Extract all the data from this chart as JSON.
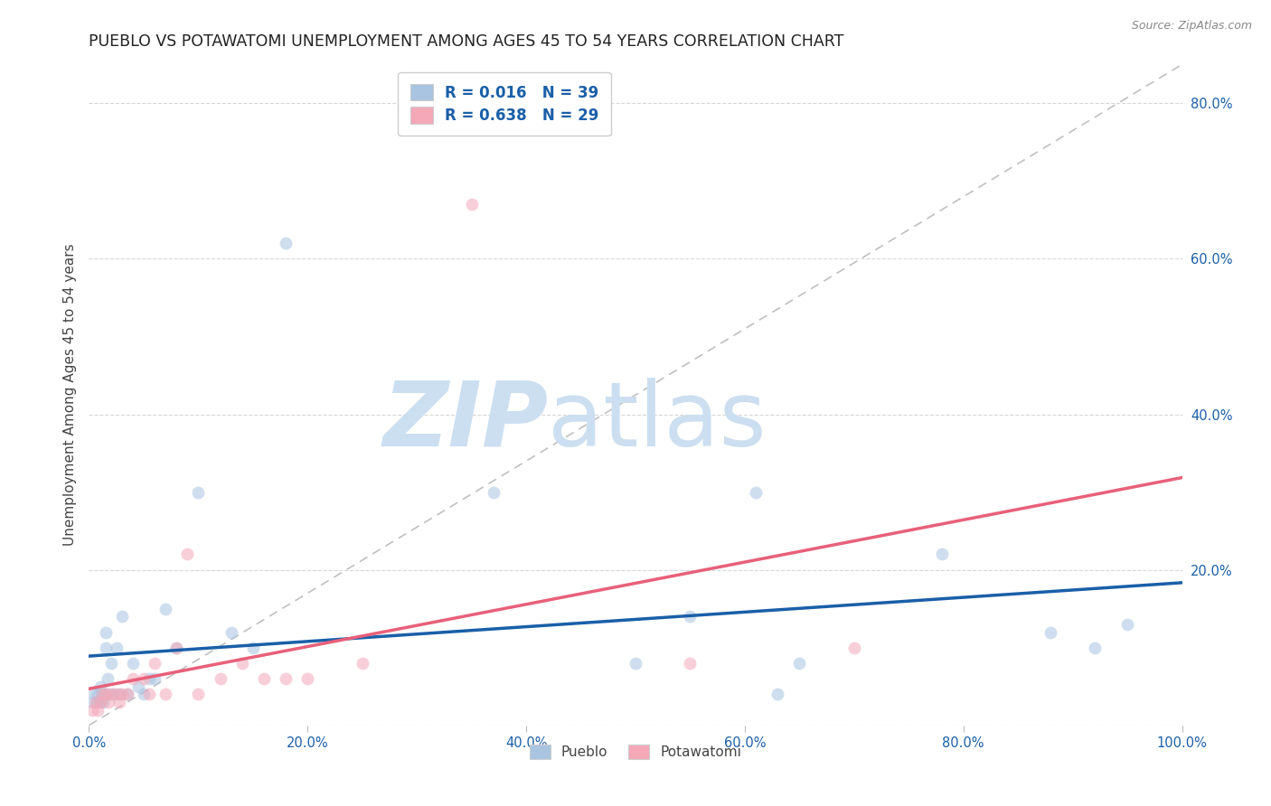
{
  "title": "PUEBLO VS POTAWATOMI UNEMPLOYMENT AMONG AGES 45 TO 54 YEARS CORRELATION CHART",
  "source": "Source: ZipAtlas.com",
  "ylabel": "Unemployment Among Ages 45 to 54 years",
  "xlim": [
    0.0,
    1.0
  ],
  "ylim": [
    0.0,
    0.85
  ],
  "xticks": [
    0.0,
    0.2,
    0.4,
    0.6,
    0.8,
    1.0
  ],
  "xtick_labels": [
    "0.0%",
    "20.0%",
    "40.0%",
    "60.0%",
    "80.0%",
    "100.0%"
  ],
  "yticks": [
    0.0,
    0.2,
    0.4,
    0.6,
    0.8
  ],
  "ytick_labels": [
    "",
    "20.0%",
    "40.0%",
    "60.0%",
    "80.0%"
  ],
  "pueblo_color": "#a8c4e0",
  "potawatomi_color": "#f4a8b8",
  "pueblo_line_color": "#1a5fa8",
  "potawatomi_line_color": "#e8607a",
  "diagonal_color": "#c0c0c0",
  "pueblo_R": 0.016,
  "pueblo_N": 39,
  "potawatomi_R": 0.638,
  "potawatomi_N": 29,
  "legend_R_color": "#1a5fa8",
  "watermark_zip": "ZIP",
  "watermark_atlas": "atlas",
  "watermark_color_zip": "#ccdff0",
  "watermark_color_atlas": "#ccdff0",
  "pueblo_x": [
    0.003,
    0.005,
    0.007,
    0.008,
    0.01,
    0.01,
    0.012,
    0.013,
    0.015,
    0.015,
    0.017,
    0.018,
    0.02,
    0.022,
    0.025,
    0.028,
    0.03,
    0.035,
    0.04,
    0.045,
    0.05,
    0.055,
    0.06,
    0.07,
    0.08,
    0.1,
    0.13,
    0.15,
    0.18,
    0.37,
    0.5,
    0.55,
    0.61,
    0.63,
    0.65,
    0.78,
    0.88,
    0.92,
    0.95
  ],
  "pueblo_y": [
    0.03,
    0.04,
    0.03,
    0.04,
    0.03,
    0.05,
    0.04,
    0.03,
    0.1,
    0.12,
    0.06,
    0.04,
    0.08,
    0.04,
    0.1,
    0.04,
    0.14,
    0.04,
    0.08,
    0.05,
    0.04,
    0.06,
    0.06,
    0.15,
    0.1,
    0.3,
    0.12,
    0.1,
    0.62,
    0.3,
    0.08,
    0.14,
    0.3,
    0.04,
    0.08,
    0.22,
    0.12,
    0.1,
    0.13
  ],
  "potawatomi_x": [
    0.003,
    0.006,
    0.008,
    0.01,
    0.012,
    0.015,
    0.018,
    0.02,
    0.025,
    0.028,
    0.03,
    0.035,
    0.04,
    0.05,
    0.055,
    0.06,
    0.07,
    0.08,
    0.09,
    0.1,
    0.12,
    0.14,
    0.16,
    0.18,
    0.2,
    0.25,
    0.35,
    0.55,
    0.7
  ],
  "potawatomi_y": [
    0.02,
    0.03,
    0.02,
    0.03,
    0.04,
    0.04,
    0.03,
    0.04,
    0.04,
    0.03,
    0.04,
    0.04,
    0.06,
    0.06,
    0.04,
    0.08,
    0.04,
    0.1,
    0.22,
    0.04,
    0.06,
    0.08,
    0.06,
    0.06,
    0.06,
    0.08,
    0.67,
    0.08,
    0.1
  ],
  "marker_size": 100,
  "marker_alpha": 0.55,
  "background_color": "#ffffff",
  "grid_color": "#d8d8d8",
  "tick_color": "#1a5fa8",
  "title_fontsize": 12.5,
  "axis_label_fontsize": 11,
  "tick_fontsize": 10.5
}
